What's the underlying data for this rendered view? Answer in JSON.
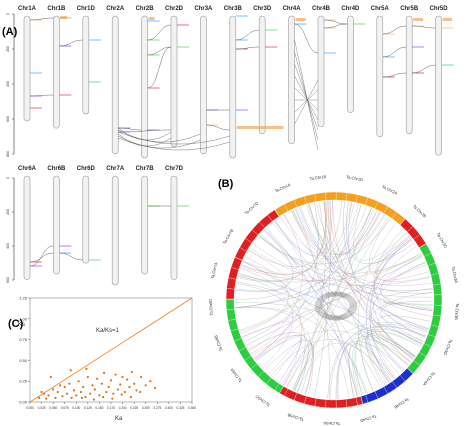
{
  "panel_labels": {
    "a": "(A)",
    "b": "(B)",
    "c": "(C)"
  },
  "panel_a": {
    "row1_chromosomes": [
      "Chr1A",
      "Chr1B",
      "Chr1D",
      "Chr2A",
      "Chr2B",
      "Chr2D",
      "Chr3A",
      "Chr3B",
      "Chr3D",
      "Chr4A",
      "Chr4B",
      "Chr4D",
      "Chr5A",
      "Chr5B",
      "Chr5D"
    ],
    "row2_chromosomes": [
      "Chr6A",
      "Chr6B",
      "Chr6D",
      "Chr7A",
      "Chr7B",
      "Chr7D"
    ],
    "scale_ticks": [
      "0",
      "200",
      "400",
      "600",
      "800"
    ],
    "colors": {
      "chromosome_fill": "#f2f2f2",
      "chromosome_stroke": "#999999",
      "link": "#555555",
      "orange_cluster": "#f4a460"
    }
  },
  "panel_b": {
    "inner_labels": [
      "Ta.Chr1A",
      "Ta.Chr1B",
      "Ta.Chr1D",
      "Ta.Chr2A",
      "Ta.Chr2B",
      "Ta.Chr2D",
      "Ta.Chr3A",
      "Ta.Chr3B",
      "Ta.Chr3D",
      "Ta.Chr4A",
      "Ta.Chr4B",
      "Ta.Chr4D",
      "Ta.Chr5A",
      "Ta.Chr5B",
      "Ta.Chr5D",
      "Ta.Chr6A",
      "Ta.Chr6B",
      "Ta.Chr6D",
      "Ta.Chr7A",
      "Ta.Chr7B",
      "Ta.Chr7D"
    ],
    "colors": {
      "orange": "#f4a01f",
      "red": "#e02020",
      "green": "#2ecc40",
      "blue": "#1f2fcf"
    }
  },
  "chart_data": {
    "type": "scatter",
    "ylabel": "Ks",
    "xlabel": "Ka",
    "annotation": "Ka/Ks=1",
    "xlim": [
      0,
      0.35
    ],
    "ylim": [
      0,
      1.25
    ],
    "x_ticks": [
      "0.000",
      "0.025",
      "0.050",
      "0.075",
      "0.100",
      "0.125",
      "0.150",
      "0.175",
      "0.200",
      "0.225",
      "0.250",
      "0.275",
      "0.300",
      "0.325",
      "0.350"
    ],
    "y_ticks": [
      "0.00",
      "0.25",
      "0.50",
      "0.75",
      "1.00",
      "1.25"
    ],
    "reference_line": {
      "from": [
        0,
        0
      ],
      "to": [
        0.35,
        1.25
      ],
      "color": "#f08020"
    },
    "point_color": "#e07010",
    "points": [
      [
        0.02,
        0.05
      ],
      [
        0.03,
        0.1
      ],
      [
        0.04,
        0.08
      ],
      [
        0.05,
        0.15
      ],
      [
        0.055,
        0.05
      ],
      [
        0.06,
        0.12
      ],
      [
        0.065,
        0.2
      ],
      [
        0.07,
        0.07
      ],
      [
        0.075,
        0.18
      ],
      [
        0.08,
        0.1
      ],
      [
        0.085,
        0.22
      ],
      [
        0.09,
        0.05
      ],
      [
        0.095,
        0.14
      ],
      [
        0.1,
        0.08
      ],
      [
        0.105,
        0.25
      ],
      [
        0.11,
        0.12
      ],
      [
        0.115,
        0.18
      ],
      [
        0.12,
        0.06
      ],
      [
        0.125,
        0.3
      ],
      [
        0.13,
        0.1
      ],
      [
        0.135,
        0.2
      ],
      [
        0.14,
        0.15
      ],
      [
        0.145,
        0.28
      ],
      [
        0.15,
        0.08
      ],
      [
        0.155,
        0.22
      ],
      [
        0.16,
        0.35
      ],
      [
        0.165,
        0.12
      ],
      [
        0.17,
        0.18
      ],
      [
        0.175,
        0.26
      ],
      [
        0.18,
        0.1
      ],
      [
        0.185,
        0.33
      ],
      [
        0.19,
        0.15
      ],
      [
        0.195,
        0.21
      ],
      [
        0.2,
        0.3
      ],
      [
        0.205,
        0.12
      ],
      [
        0.21,
        0.27
      ],
      [
        0.215,
        0.18
      ],
      [
        0.22,
        0.36
      ],
      [
        0.225,
        0.22
      ],
      [
        0.23,
        0.14
      ],
      [
        0.24,
        0.3
      ],
      [
        0.25,
        0.2
      ],
      [
        0.26,
        0.25
      ],
      [
        0.27,
        0.17
      ],
      [
        0.045,
        0.3
      ],
      [
        0.035,
        0.04
      ],
      [
        0.025,
        0.12
      ],
      [
        0.088,
        0.38
      ],
      [
        0.112,
        0.05
      ],
      [
        0.138,
        0.03
      ],
      [
        0.158,
        0.06
      ],
      [
        0.178,
        0.04
      ],
      [
        0.198,
        0.09
      ],
      [
        0.218,
        0.06
      ],
      [
        0.238,
        0.12
      ],
      [
        0.122,
        0.4
      ]
    ]
  }
}
